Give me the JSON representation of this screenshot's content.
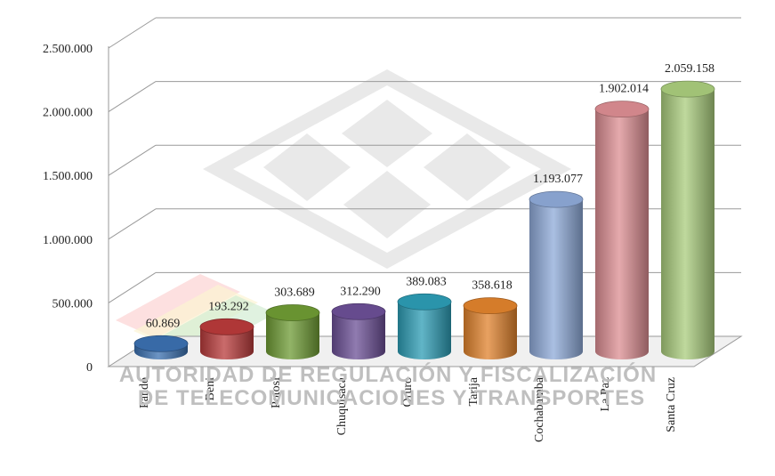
{
  "chart_data": {
    "type": "bar",
    "categories": [
      "Pando",
      "Beni",
      "Potosí",
      "Chuquisaca",
      "Oruro",
      "Tarija",
      "Cochabamba",
      "La Paz",
      "Santa Cruz"
    ],
    "values": [
      60869,
      193292,
      303689,
      312290,
      389083,
      358618,
      1193077,
      1902014,
      2059158
    ],
    "value_labels": [
      "60.869",
      "193.292",
      "303.689",
      "312.290",
      "389.083",
      "358.618",
      "1.193.077",
      "1.902.014",
      "2.059.158"
    ],
    "colors": [
      "#3b70b0",
      "#b83a3a",
      "#6e9b34",
      "#6b4f95",
      "#2c9cb4",
      "#e0822c",
      "#8ea9d8",
      "#dc8d92",
      "#a9cc7c"
    ],
    "yticks": [
      "0",
      "500.000",
      "1.000.000",
      "1.500.000",
      "2.000.000",
      "2.500.000"
    ],
    "ylim": [
      0,
      2500000
    ],
    "grid": true,
    "style": "3d-cylinder"
  },
  "watermark": {
    "line1": "AUTORIDAD DE REGULACIÓN Y FISCALIZACIÓN",
    "line2": "DE TELECOMUNICACIONES Y TRANSPORTES"
  }
}
